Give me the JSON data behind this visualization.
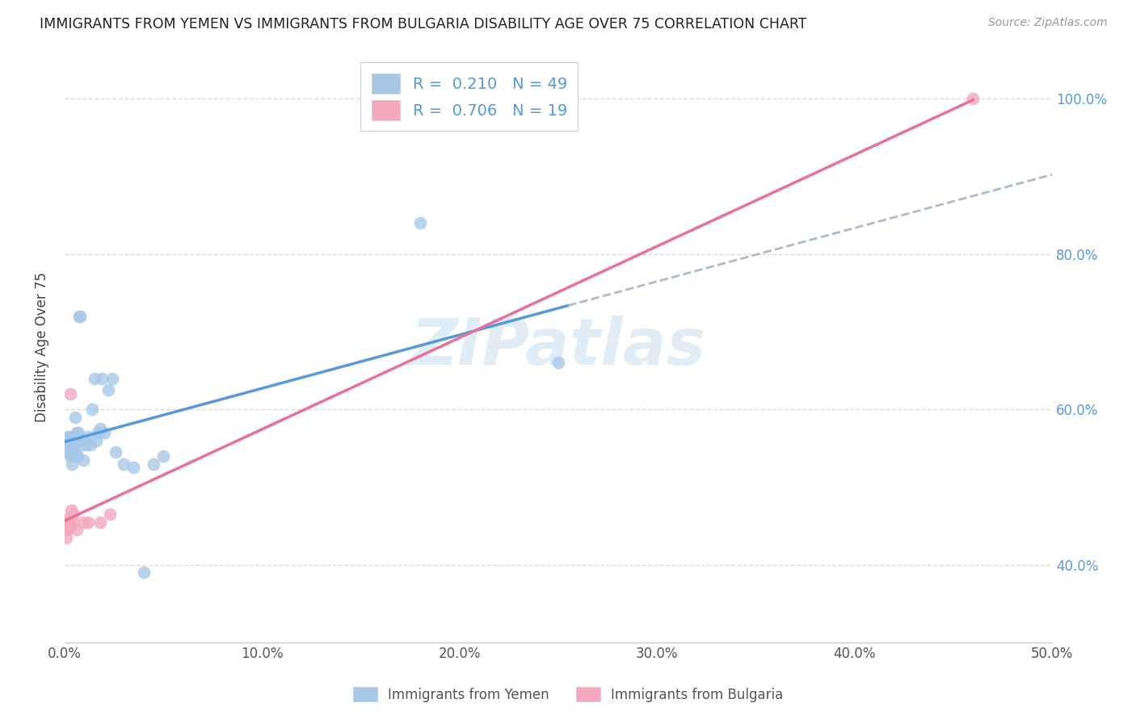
{
  "title": "IMMIGRANTS FROM YEMEN VS IMMIGRANTS FROM BULGARIA DISABILITY AGE OVER 75 CORRELATION CHART",
  "source": "Source: ZipAtlas.com",
  "ylabel": "Disability Age Over 75",
  "R1": 0.21,
  "N1": 49,
  "R2": 0.706,
  "N2": 19,
  "color_yemen": "#a8c8e8",
  "color_bulgaria": "#f4a8be",
  "color_line_yemen": "#5599dd",
  "color_line_bulgaria": "#e8709a",
  "color_dashed": "#aabbcc",
  "legend_label1": "Immigrants from Yemen",
  "legend_label2": "Immigrants from Bulgaria",
  "watermark": "ZIPatlas",
  "xlim": [
    0.0,
    0.5
  ],
  "ylim": [
    0.3,
    1.06
  ],
  "yticks": [
    0.4,
    0.6,
    0.8,
    1.0
  ],
  "xticks": [
    0.0,
    0.1,
    0.2,
    0.3,
    0.4,
    0.5
  ],
  "background_color": "#ffffff",
  "grid_color": "#dddddd",
  "yemen_x": [
    0.0005,
    0.001,
    0.0012,
    0.0015,
    0.0018,
    0.002,
    0.0022,
    0.0025,
    0.0028,
    0.003,
    0.0032,
    0.0035,
    0.0038,
    0.004,
    0.0042,
    0.0045,
    0.0048,
    0.005,
    0.0055,
    0.0058,
    0.006,
    0.0065,
    0.007,
    0.0075,
    0.008,
    0.0085,
    0.009,
    0.0095,
    0.01,
    0.011,
    0.012,
    0.013,
    0.014,
    0.015,
    0.016,
    0.017,
    0.018,
    0.019,
    0.02,
    0.022,
    0.024,
    0.026,
    0.03,
    0.035,
    0.04,
    0.045,
    0.05,
    0.18,
    0.25
  ],
  "yemen_y": [
    0.555,
    0.56,
    0.545,
    0.565,
    0.545,
    0.555,
    0.565,
    0.55,
    0.545,
    0.54,
    0.545,
    0.545,
    0.53,
    0.565,
    0.555,
    0.56,
    0.545,
    0.555,
    0.59,
    0.54,
    0.57,
    0.54,
    0.57,
    0.72,
    0.72,
    0.56,
    0.555,
    0.535,
    0.56,
    0.555,
    0.565,
    0.555,
    0.6,
    0.64,
    0.56,
    0.57,
    0.575,
    0.64,
    0.57,
    0.625,
    0.64,
    0.545,
    0.53,
    0.525,
    0.39,
    0.53,
    0.54,
    0.84,
    0.66
  ],
  "bulgaria_x": [
    0.0005,
    0.0008,
    0.001,
    0.0012,
    0.0015,
    0.0018,
    0.002,
    0.0025,
    0.0028,
    0.003,
    0.0035,
    0.004,
    0.0045,
    0.006,
    0.01,
    0.012,
    0.018,
    0.023,
    0.46
  ],
  "bulgaria_y": [
    0.445,
    0.435,
    0.455,
    0.445,
    0.455,
    0.46,
    0.455,
    0.45,
    0.62,
    0.45,
    0.47,
    0.455,
    0.465,
    0.445,
    0.455,
    0.455,
    0.455,
    0.465,
    1.0
  ]
}
